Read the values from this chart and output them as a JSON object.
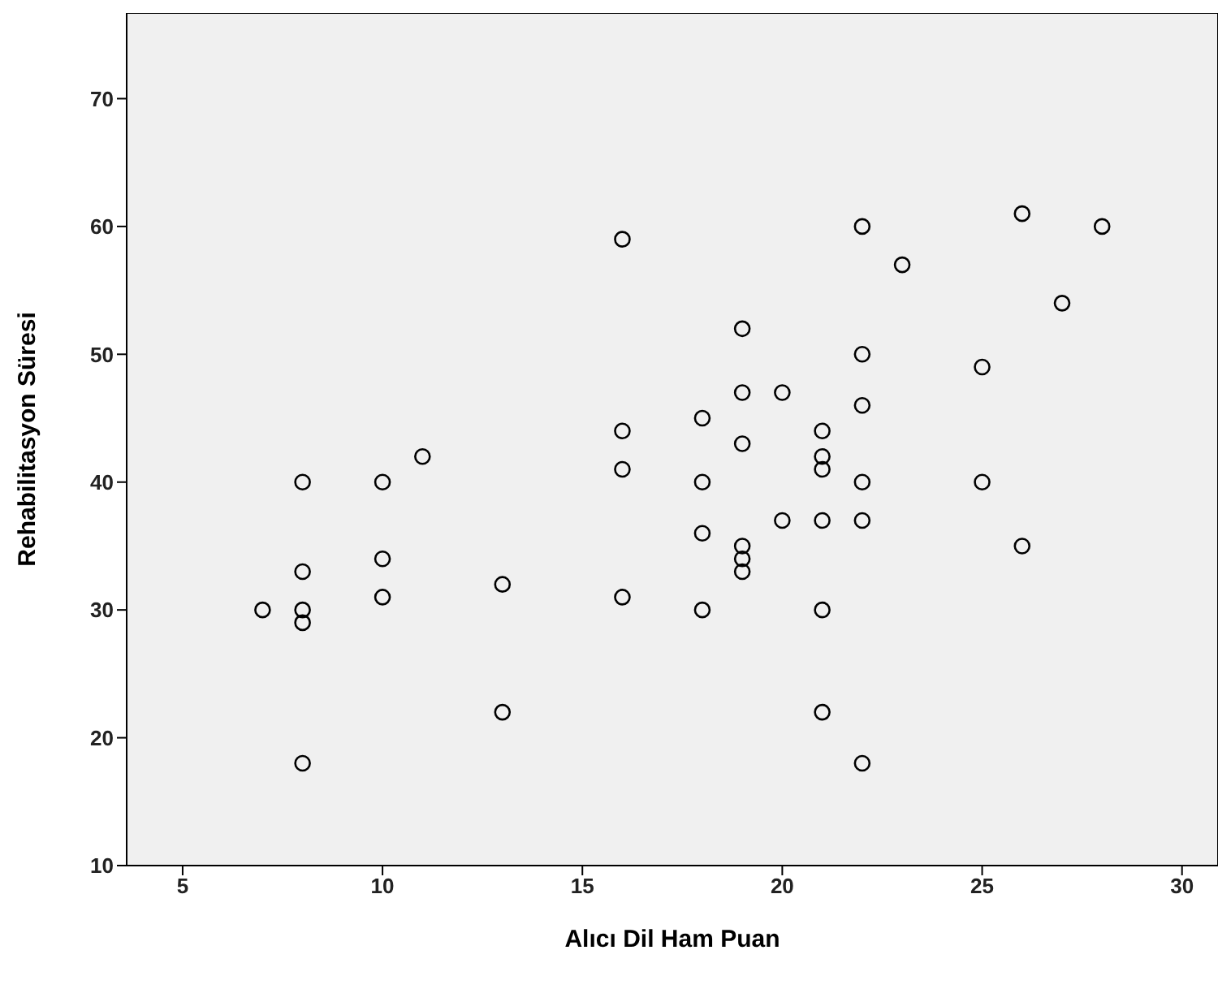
{
  "chart_data": {
    "type": "scatter",
    "xlabel": "Alıcı Dil Ham Puan",
    "ylabel": "Rehabilitasyon Süresi",
    "x": [
      7,
      8,
      8,
      8,
      8,
      8,
      10,
      10,
      10,
      11,
      13,
      13,
      16,
      16,
      16,
      16,
      18,
      18,
      18,
      18,
      19,
      19,
      19,
      19,
      19,
      19,
      20,
      20,
      21,
      21,
      21,
      21,
      21,
      21,
      22,
      22,
      22,
      22,
      22,
      22,
      23,
      25,
      25,
      26,
      26,
      27,
      28
    ],
    "values": [
      30,
      40,
      33,
      30,
      29,
      18,
      40,
      34,
      31,
      42,
      32,
      22,
      59,
      44,
      41,
      31,
      45,
      40,
      36,
      30,
      52,
      47,
      43,
      35,
      34,
      33,
      47,
      37,
      44,
      42,
      41,
      37,
      30,
      22,
      60,
      50,
      46,
      40,
      37,
      18,
      57,
      49,
      40,
      61,
      35,
      54,
      60
    ],
    "color": "#000000",
    "marker": "circle",
    "xlim": [
      3.6,
      30.9
    ],
    "ylim": [
      10,
      76.7
    ],
    "xticks": [
      5,
      10,
      15,
      20,
      25,
      30
    ],
    "yticks": [
      10,
      20,
      30,
      40,
      50,
      60,
      70
    ]
  }
}
